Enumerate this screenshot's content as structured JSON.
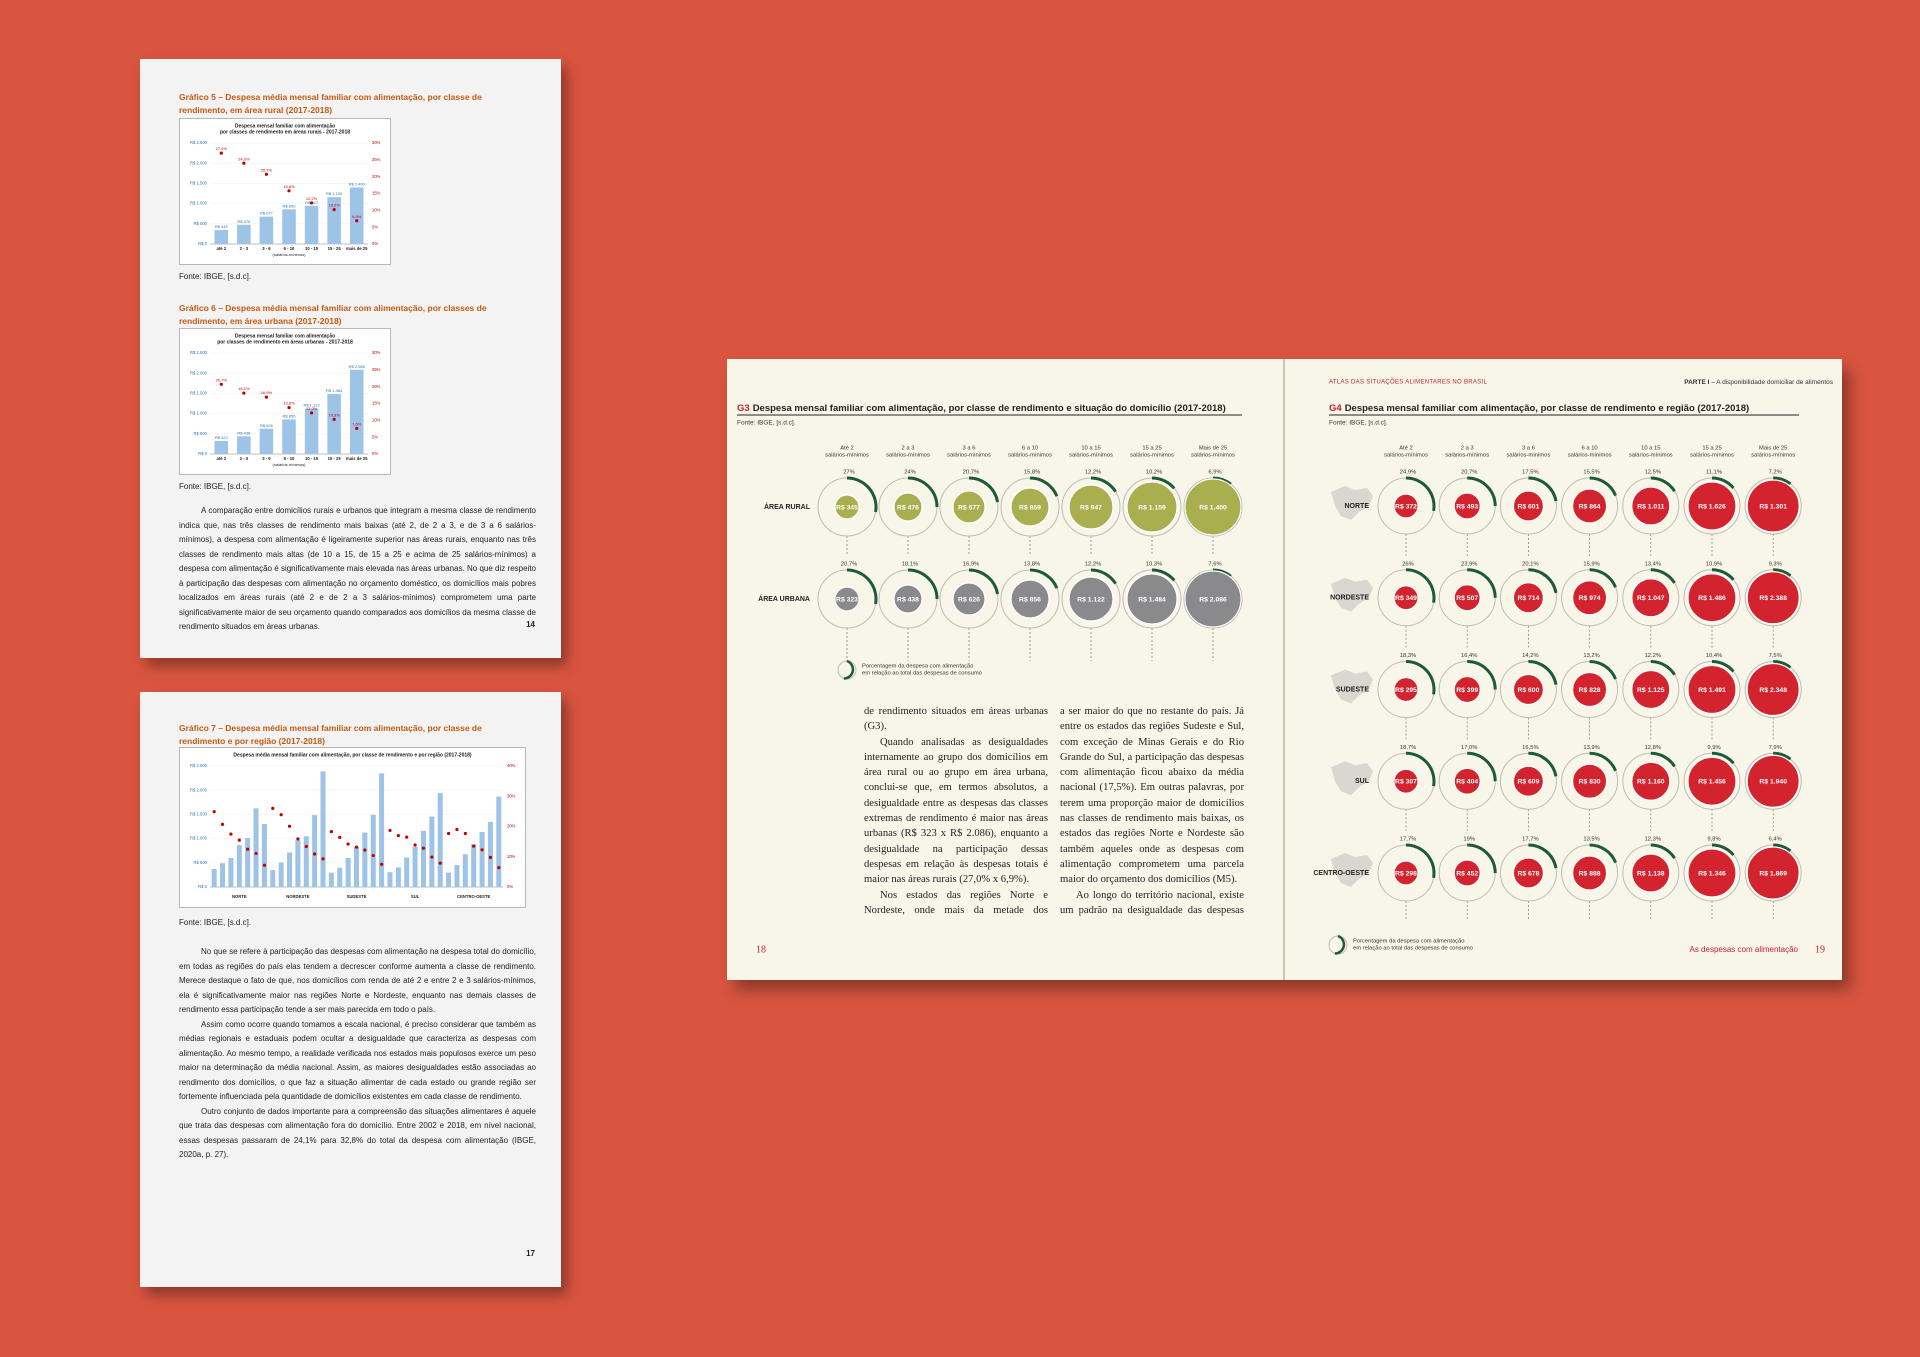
{
  "pages": [
    {
      "figures": [
        {
          "title": "Gráfico 5 – Despesa média mensal familiar com alimentação, por classe de rendimento, em área rural (2017-2018)",
          "chart": {
            "type": "bar",
            "title": [
              "Despesa mensal familiar com alimentação",
              "por classes de rendimento em áreas rurais - 2017-2018"
            ],
            "categories": [
              "até 2",
              "2 - 3",
              "3 - 6",
              "6 - 10",
              "10 - 15",
              "15 - 25",
              "mais de 25"
            ],
            "xlabel": "(salários-mínimos)",
            "series": [
              {
                "color": "#9dc3e6",
                "values": [
                  345,
                  476,
                  677,
                  859,
                  947,
                  1159,
                  1400
                ],
                "value_labels": [
                  "R$ 345",
                  "R$ 476",
                  "R$ 677",
                  "R$ 859",
                  "R$ 947",
                  "R$ 1.159",
                  "R$ 1.400"
                ]
              },
              {
                "color": "#c00000",
                "axis": "y2",
                "values": [
                  27.0,
                  24.0,
                  20.7,
                  15.8,
                  12.2,
                  10.2,
                  6.9
                ],
                "value_labels": [
                  "27,0%",
                  "24,0%",
                  "20,7%",
                  "15,8%",
                  "12,2%",
                  "10,2%",
                  "6,9%"
                ]
              }
            ],
            "ylim": [
              0,
              2500
            ],
            "yticks": [
              {
                "value": 0,
                "label": "R$ 0"
              },
              {
                "value": 500,
                "label": "R$ 500"
              },
              {
                "value": 1000,
                "label": "R$ 1.000"
              },
              {
                "value": 1500,
                "label": "R$ 1.500"
              },
              {
                "value": 2000,
                "label": "R$ 2.000"
              },
              {
                "value": 2500,
                "label": "R$ 2.500"
              }
            ],
            "y2lim": [
              0,
              30
            ],
            "y2ticks": [
              {
                "value": 0,
                "label": "0%"
              },
              {
                "value": 5,
                "label": "5%"
              },
              {
                "value": 10,
                "label": "10%"
              },
              {
                "value": 15,
                "label": "15%"
              },
              {
                "value": 20,
                "label": "20%"
              },
              {
                "value": 25,
                "label": "25%"
              },
              {
                "value": 30,
                "label": "30%"
              }
            ]
          },
          "source": "Fonte: IBGE, [s.d.c]."
        },
        {
          "title": "Gráfico 6 – Despesa média mensal familiar com alimentação, por classes de rendimento, em área urbana (2017-2018)",
          "chart": {
            "type": "bar",
            "title": [
              "Despesa mensal familiar com alimentação",
              "por classes de rendimento em áreas urbanas - 2017-2018"
            ],
            "categories": [
              "até 2",
              "2 - 3",
              "3 - 6",
              "6 - 10",
              "10 - 15",
              "15 - 25",
              "mais de 25"
            ],
            "xlabel": "(salários-mínimos)",
            "series": [
              {
                "color": "#9dc3e6",
                "values": [
                  323,
                  438,
                  626,
                  856,
                  1122,
                  1484,
                  2086
                ],
                "value_labels": [
                  "R$ 323",
                  "R$ 438",
                  "R$ 626",
                  "R$ 856",
                  "R$ 1.122",
                  "R$ 1.484",
                  "R$ 2.086"
                ]
              },
              {
                "color": "#c00000",
                "axis": "y2",
                "values": [
                  20.7,
                  18.1,
                  16.9,
                  13.8,
                  12.2,
                  10.3,
                  7.6
                ],
                "value_labels": [
                  "20,7%",
                  "18,1%",
                  "16,9%",
                  "13,8%",
                  "12,2%",
                  "10,3%",
                  "7,6%"
                ]
              }
            ],
            "ylim": [
              0,
              2500
            ],
            "yticks": [
              {
                "value": 0,
                "label": "R$ 0"
              },
              {
                "value": 500,
                "label": "R$ 500"
              },
              {
                "value": 1000,
                "label": "R$ 1.000"
              },
              {
                "value": 1500,
                "label": "R$ 1.500"
              },
              {
                "value": 2000,
                "label": "R$ 2.000"
              },
              {
                "value": 2500,
                "label": "R$ 2.500"
              }
            ],
            "y2lim": [
              0,
              30
            ],
            "y2ticks": [
              {
                "value": 0,
                "label": "0%"
              },
              {
                "value": 5,
                "label": "5%"
              },
              {
                "value": 10,
                "label": "10%"
              },
              {
                "value": 15,
                "label": "15%"
              },
              {
                "value": 20,
                "label": "20%"
              },
              {
                "value": 25,
                "label": "25%"
              },
              {
                "value": 30,
                "label": "30%"
              }
            ]
          },
          "source": "Fonte: IBGE, [s.d.c]."
        }
      ],
      "paragraphs": [
        "A comparação entre domicílios rurais e urbanos que integram a mesma classe de rendimento indica que, nas três classes de rendimento mais baixas (até 2, de 2 a 3, e de 3 a 6 salários-mínimos), a despesa com alimentação é ligeiramente superior nas áreas rurais, enquanto nas três classes de rendimento mais altas (de 10 a 15, de 15 a 25 e acima de 25 salários-mínimos) a despesa com alimentação é significativamente mais elevada nas áreas urbanas. No que diz respeito à participação das despesas com alimentação no orçamento doméstico, os domicílios mais pobres localizados em áreas rurais (até 2 e de 2 a 3 salários-mínimos) comprometem uma parte significativamente maior de seu orçamento quando comparados aos domicílios da mesma classe de rendimento situados em áreas urbanas."
      ],
      "page_number": "14"
    },
    {
      "figures": [
        {
          "title": "Gráfico 7 – Despesa média mensal familiar com alimentação, por classe de rendimento e por região (2017-2018)",
          "chart": {
            "type": "bar",
            "title": [
              "Despesa média mensal familiar com alimentação, por classe de rendimento e por região (2017-2018)"
            ],
            "groups": [
              "NORTE",
              "NORDESTE",
              "SUDESTE",
              "SUL",
              "CENTRO-OESTE"
            ],
            "series": [
              {
                "color": "#9dc3e6",
                "values": [
                  372,
                  493,
                  601,
                  864,
                  1011,
                  1626,
                  1301,
                  349,
                  507,
                  714,
                  974,
                  1047,
                  1486,
                  2388,
                  295,
                  399,
                  600,
                  828,
                  1125,
                  1491,
                  2348,
                  307,
                  404,
                  609,
                  830,
                  1160,
                  1456,
                  1940,
                  298,
                  452,
                  678,
                  888,
                  1138,
                  1346,
                  1869
                ]
              },
              {
                "color": "#c00000",
                "axis": "y2",
                "values": [
                  24.9,
                  20.7,
                  17.5,
                  15.5,
                  12.5,
                  11.1,
                  7.2,
                  26,
                  23.9,
                  20.1,
                  15.9,
                  13.4,
                  10.9,
                  9.3,
                  18.3,
                  16.4,
                  14.2,
                  13.2,
                  12.2,
                  10.4,
                  7.5,
                  18.7,
                  17.0,
                  16.5,
                  13.9,
                  12.8,
                  9.9,
                  7.9,
                  17.7,
                  19,
                  17.7,
                  13.5,
                  12.3,
                  9.8,
                  6.4
                ]
              }
            ],
            "ylim": [
              0,
              2500
            ],
            "yticks": [
              {
                "value": 0,
                "label": "R$ 0"
              },
              {
                "value": 500,
                "label": "R$ 500"
              },
              {
                "value": 1000,
                "label": "R$ 1.000"
              },
              {
                "value": 1500,
                "label": "R$ 1.500"
              },
              {
                "value": 2000,
                "label": "R$ 2.000"
              },
              {
                "value": 2500,
                "label": "R$ 2.500"
              }
            ],
            "y2lim": [
              0,
              40
            ],
            "y2ticks": [
              {
                "value": 0,
                "label": "0%"
              },
              {
                "value": 10,
                "label": "10%"
              },
              {
                "value": 20,
                "label": "20%"
              },
              {
                "value": 30,
                "label": "30%"
              },
              {
                "value": 40,
                "label": "40%"
              }
            ]
          },
          "source": "Fonte: IBGE, [s.d.c]."
        }
      ],
      "paragraphs": [
        "No que se refere à participação das despesas com alimentação na despesa total do domicílio, em todas as regiões do país elas tendem a decrescer conforme aumenta a classe de rendimento. Merece destaque o fato de que, nos domicílios com renda de até 2 e entre 2 e 3 salários-mínimos, ela é significativamente maior nas regiões Norte e Nordeste, enquanto nas demais classes de rendimento essa participação tende a ser mais parecida em todo o país.",
        "Assim como ocorre quando tomamos a escala nacional, é preciso considerar que também as médias regionais e estaduais podem ocultar a desigualdade que caracteriza as despesas com alimentação. Ao mesmo tempo, a realidade verificada nos estados mais populosos exerce um peso maior na determinação da média nacional. Assim, as maiores desigualdades estão associadas ao rendimento dos domicílios, o que faz a situação alimentar de cada estado ou grande região ser fortemente influenciada pela quantidade de domicílios existentes em cada classe de rendimento.",
        "Outro conjunto de dados importante para a compreensão das situações alimentares é aquele que trata das despesas com alimentação fora do domicílio. Entre 2002 e 2018, em nível nacional, essas despesas passaram de 24,1% para 32,8% do total da despesa com alimentação (IBGE, 2020a, p. 27)."
      ],
      "page_number": "17"
    }
  ],
  "spread": {
    "header_left": "ATLAS DAS SITUAÇÕES ALIMENTARES NO BRASIL",
    "header_right_bold": "PARTE I",
    "header_right": " – A disponibilidade domiciliar de alimentos",
    "g3": {
      "label": "G3",
      "title": "Despesa mensal familiar com alimentação, por classe de rendimento e situação do domicílio (2017-2018)",
      "source": "Fonte: IBGE, [s.d.c].",
      "columns": [
        {
          "top": "Até 2",
          "bottom": "salários-mínimos"
        },
        {
          "top": "2 a 3",
          "bottom": "salários-mínimos"
        },
        {
          "top": "3 a 6",
          "bottom": "salários-mínimos"
        },
        {
          "top": "6 a 10",
          "bottom": "salários-mínimos"
        },
        {
          "top": "10 a 15",
          "bottom": "salários-mínimos"
        },
        {
          "top": "15 a 25",
          "bottom": "salários-mínimos"
        },
        {
          "top": "Mais de 25",
          "bottom": "salários-mínimos"
        }
      ],
      "rows": [
        {
          "name": "ÁREA RURAL",
          "color": "#a9ae4f",
          "values": [
            "R$ 345",
            "R$ 476",
            "R$ 677",
            "R$ 859",
            "R$ 947",
            "R$ 1.159",
            "R$ 1.400"
          ],
          "percents": [
            "27%",
            "24%",
            "20,7%",
            "15,8%",
            "12,2%",
            "10,2%",
            "6,9%"
          ]
        },
        {
          "name": "ÁREA URBANA",
          "color": "#8a8a8c",
          "values": [
            "R$ 323",
            "R$ 438",
            "R$ 626",
            "R$ 856",
            "R$ 1.122",
            "R$ 1.484",
            "R$ 2.086"
          ],
          "percents": [
            "20,7%",
            "18,1%",
            "16,9%",
            "13,8%",
            "12,2%",
            "10,3%",
            "7,6%"
          ]
        }
      ],
      "legend": [
        "Porcentagem da despesa com alimentação",
        "em relação ao total das despesas de consumo"
      ]
    },
    "text_columns": [
      [
        "de rendimento situados em áreas urbanas (G3).",
        "Quando analisadas as desigualdades internamente ao grupo dos domicílios em área rural ou ao grupo em área urbana, conclui-se que, em termos absolutos, a desigualdade entre as despesas das classes extremas de rendimento é maior nas áreas urbanas (R$ 323 x R$ 2.086), enquanto a desigualdade na participação dessas despesas em relação às despesas totais é maior nas áreas rurais (27,0% x 6,9%).",
        "Nos estados das regiões Norte e Nordeste, onde mais da metade dos domicílios tem rendimento mensal de até 3 salários-mínimos, a participação média das despesas com alimentação no total das despesas de consumo tende"
      ],
      [
        "a ser maior do que no restante do país. Já entre os estados das regiões Sudeste e Sul, com exceção de Minas Gerais e do Rio Grande do Sul, a participação das despesas com alimentação ficou abaixo da média nacional (17,5%). Em outras palavras, por terem uma proporção maior de domicílios nas classes de rendimento mais baixas, os estados das regiões Norte e Nordeste são também aqueles onde as despesas com alimentação comprometem uma parcela maior do orçamento dos domicílios (M5).",
        "Ao longo do território nacional, existe um padrão na desigualdade das despesas com alimentação por classe de rendimentos (G4). Nas cinco grandes regiões do país, os domicílios"
      ]
    ],
    "g4": {
      "label": "G4",
      "title": "Despesa mensal familiar com alimentação, por classe de rendimento e região (2017-2018)",
      "source": "Fonte: IBGE, [s.d.c].",
      "color": "#d2232f",
      "columns": [
        {
          "top": "Até 2",
          "bottom": "salários-mínimos"
        },
        {
          "top": "2 a 3",
          "bottom": "salários-mínimos"
        },
        {
          "top": "3 a 6",
          "bottom": "salários-mínimos"
        },
        {
          "top": "6 a 10",
          "bottom": "salários-mínimos"
        },
        {
          "top": "10 a 15",
          "bottom": "salários-mínimos"
        },
        {
          "top": "15 a 25",
          "bottom": "salários-mínimos"
        },
        {
          "top": "Mais de 25",
          "bottom": "salários-mínimos"
        }
      ],
      "rows": [
        {
          "name": "NORTE",
          "values": [
            "R$ 372",
            "R$ 493",
            "R$ 601",
            "R$ 864",
            "R$ 1.011",
            "R$ 1.626",
            "R$ 1.301"
          ],
          "percents": [
            "24,9%",
            "20,7%",
            "17,5%",
            "15,5%",
            "12,5%",
            "11,1%",
            "7,2%"
          ]
        },
        {
          "name": "NORDESTE",
          "values": [
            "R$ 349",
            "R$ 507",
            "R$ 714",
            "R$ 974",
            "R$ 1.047",
            "R$ 1.486",
            "R$ 2.388"
          ],
          "percents": [
            "26%",
            "23,9%",
            "20,1%",
            "15,9%",
            "13,4%",
            "10,9%",
            "9,3%"
          ]
        },
        {
          "name": "SUDESTE",
          "values": [
            "R$ 295",
            "R$ 399",
            "R$ 600",
            "R$ 828",
            "R$ 1.125",
            "R$ 1.491",
            "R$ 2.348"
          ],
          "percents": [
            "18,3%",
            "16,4%",
            "14,2%",
            "13,2%",
            "12,2%",
            "10,4%",
            "7,5%"
          ]
        },
        {
          "name": "SUL",
          "values": [
            "R$ 307",
            "R$ 404",
            "R$ 609",
            "R$ 830",
            "R$ 1.160",
            "R$ 1.456",
            "R$ 1.940"
          ],
          "percents": [
            "18,7%",
            "17,0%",
            "16,5%",
            "13,9%",
            "12,8%",
            "9,9%",
            "7,9%"
          ]
        },
        {
          "name": "CENTRO-OESTE",
          "values": [
            "R$ 298",
            "R$ 452",
            "R$ 678",
            "R$ 888",
            "R$ 1.138",
            "R$ 1.346",
            "R$ 1.869"
          ],
          "percents": [
            "17,7%",
            "19%",
            "17,7%",
            "13,5%",
            "12,3%",
            "9,8%",
            "6,4%"
          ]
        }
      ],
      "legend": [
        "Porcentagem da despesa com alimentação",
        "em relação ao total das despesas de consumo"
      ]
    },
    "page_left": "18",
    "page_right": "19",
    "footer_right": "As despesas com alimentação"
  }
}
